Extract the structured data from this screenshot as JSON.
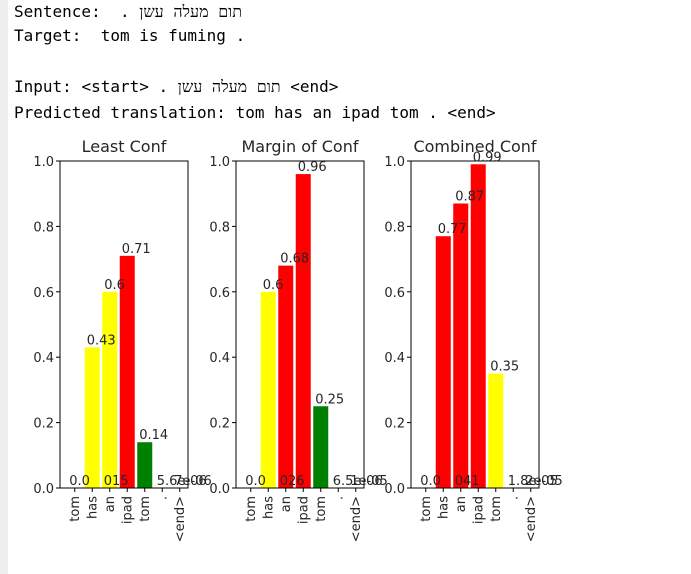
{
  "console": {
    "sentence_label": "Sentence:",
    "sentence_text": "תום מעלה עשן .",
    "target_label": "Target:",
    "target_text": "tom is fuming .",
    "input_label": "Input:",
    "input_start": "<start>",
    "input_text": "תום מעלה עשן .",
    "input_end": "<end>",
    "pred_label": "Predicted translation:",
    "pred_text": "tom has an ipad tom . <end>"
  },
  "chart_data": [
    {
      "type": "bar",
      "title": "Least Conf",
      "categories": [
        "tom",
        "has",
        "an",
        "ipad",
        "tom",
        ".",
        "<end>"
      ],
      "values": [
        0.0,
        0.43,
        0.6,
        0.71,
        0.14,
        5.6e-06,
        7e-06
      ],
      "data_labels": [
        "0.0",
        "0.43",
        "0.6",
        "0.71",
        "0.14",
        "5.6e-06",
        "7e-06"
      ],
      "colors": [
        "yellow",
        "yellow",
        "yellow",
        "red",
        "green",
        "green",
        "green"
      ],
      "ylim": [
        0,
        1.0
      ],
      "yticks": [
        "0.0",
        "0.2",
        "0.4",
        "0.6",
        "0.8",
        "1.0"
      ],
      "overflow_label": "015"
    },
    {
      "type": "bar",
      "title": "Margin of Conf",
      "categories": [
        "tom",
        "has",
        "an",
        "ipad",
        "tom",
        ".",
        "<end>"
      ],
      "values": [
        0.0,
        0.6,
        0.68,
        0.96,
        0.25,
        6.5e-06,
        1e-05
      ],
      "data_labels": [
        "0.0",
        "0.6",
        "0.68",
        "0.96",
        "0.25",
        "6.5e-06",
        "1e-05"
      ],
      "colors": [
        "yellow",
        "yellow",
        "red",
        "red",
        "green",
        "green",
        "green"
      ],
      "ylim": [
        0,
        1.0
      ],
      "yticks": [
        "0.0",
        "0.2",
        "0.4",
        "0.6",
        "0.8",
        "1.0"
      ],
      "overflow_label": "026"
    },
    {
      "type": "bar",
      "title": "Combined Conf",
      "categories": [
        "tom",
        "has",
        "an",
        "ipad",
        "tom",
        ".",
        "<end>"
      ],
      "values": [
        0.0,
        0.77,
        0.87,
        0.99,
        0.35,
        1.8e-05,
        2e-05
      ],
      "data_labels": [
        "0.0",
        "0.77",
        "0.87",
        "0.99",
        "0.35",
        "1.8e-05",
        "2e-05"
      ],
      "colors": [
        "red",
        "red",
        "red",
        "red",
        "yellow",
        "red",
        "red"
      ],
      "ylim": [
        0,
        1.0
      ],
      "yticks": [
        "0.0",
        "0.2",
        "0.4",
        "0.6",
        "0.8",
        "1.0"
      ],
      "overflow_label": "041"
    }
  ]
}
